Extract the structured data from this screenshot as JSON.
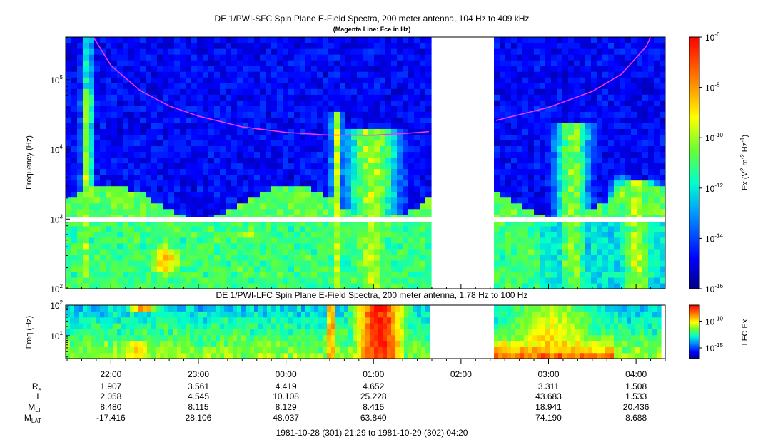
{
  "chart_data": [
    {
      "type": "heatmap",
      "title": "DE 1/PWI-SFC  Spin Plane E-Field Spectra, 200 meter antenna, 104 Hz to 409 kHz",
      "subtitle": "(Magenta Line: Fce in Hz)",
      "ylabel": "Frequency (Hz)",
      "yscale": "log",
      "ylim": [
        100,
        409000
      ],
      "y_ticks": [
        {
          "value": 100,
          "base": "10",
          "exp": "2"
        },
        {
          "value": 1000,
          "base": "10",
          "exp": "3"
        },
        {
          "value": 10000,
          "base": "10",
          "exp": "4"
        },
        {
          "value": 100000,
          "base": "10",
          "exp": "5"
        }
      ],
      "colorbar": {
        "label_pre": "Ex (V",
        "label_mid": " m",
        "label_mid2": " Hz",
        "label_post": ")",
        "label_sup1": "2",
        "label_sup2": "-2",
        "label_sup3": "-1",
        "scale": "log",
        "range": [
          1e-16,
          1e-06
        ],
        "ticks": [
          {
            "value": 1e-06,
            "base": "10",
            "exp": "-6"
          },
          {
            "value": 1e-08,
            "base": "10",
            "exp": "-8"
          },
          {
            "value": 1e-10,
            "base": "10",
            "exp": "-10"
          },
          {
            "value": 1e-12,
            "base": "10",
            "exp": "-12"
          },
          {
            "value": 1e-14,
            "base": "10",
            "exp": "-14"
          },
          {
            "value": 1e-16,
            "base": "10",
            "exp": "-16"
          }
        ]
      },
      "data_gap": [
        "01:40",
        "02:24"
      ],
      "fce_line": {
        "color": "#ff33ff",
        "points": [
          {
            "time": "21:48",
            "freq": 409000
          },
          {
            "time": "22:00",
            "freq": 160000
          },
          {
            "time": "22:20",
            "freq": 70000
          },
          {
            "time": "22:40",
            "freq": 42000
          },
          {
            "time": "23:00",
            "freq": 30000
          },
          {
            "time": "23:30",
            "freq": 21000
          },
          {
            "time": "00:00",
            "freq": 17500
          },
          {
            "time": "00:30",
            "freq": 16000
          },
          {
            "time": "01:00",
            "freq": 16000
          },
          {
            "time": "01:20",
            "freq": 16800
          },
          {
            "time": "01:38",
            "freq": 18000
          },
          {
            "time": "02:24",
            "freq": 26000
          },
          {
            "time": "03:00",
            "freq": 40000
          },
          {
            "time": "03:30",
            "freq": 68000
          },
          {
            "time": "03:50",
            "freq": 120000
          },
          {
            "time": "04:07",
            "freq": 300000
          },
          {
            "time": "04:10",
            "freq": 409000
          }
        ]
      }
    },
    {
      "type": "heatmap",
      "title": "DE 1/PWI-LFC  Spin Plane E-Field Spectra, 200 meter antenna, 1.78 Hz to 100 Hz",
      "ylabel": "Freq (Hz)",
      "yscale": "log",
      "ylim": [
        1.78,
        100
      ],
      "y_ticks": [
        {
          "value": 10,
          "base": "10",
          "exp": "1"
        },
        {
          "value": 100,
          "base": "10",
          "exp": "2"
        }
      ],
      "colorbar": {
        "label": "LFC Ex",
        "scale": "log",
        "range": [
          1e-17,
          1e-07
        ],
        "ticks": [
          {
            "value": 1e-10,
            "base": "10",
            "exp": "-10"
          },
          {
            "value": 1e-15,
            "base": "10",
            "exp": "-15"
          }
        ]
      },
      "data_gap": [
        "01:40",
        "02:24"
      ]
    }
  ],
  "x_axis": {
    "start": "21:29",
    "end": "04:20",
    "ticks": [
      "22:00",
      "23:00",
      "00:00",
      "01:00",
      "02:00",
      "03:00",
      "04:00"
    ]
  },
  "ephemeris": {
    "labels": [
      {
        "main": "R",
        "sub": "e"
      },
      {
        "main": "L",
        "sub": ""
      },
      {
        "main": "M",
        "sub": "LT"
      },
      {
        "main": "M",
        "sub": "LAT"
      }
    ],
    "columns": [
      {
        "time": "22:00",
        "values": [
          "1.907",
          "2.058",
          "8.480",
          "-17.416"
        ]
      },
      {
        "time": "23:00",
        "values": [
          "3.561",
          "4.545",
          "8.115",
          "28.106"
        ]
      },
      {
        "time": "00:00",
        "values": [
          "4.419",
          "10.108",
          "8.129",
          "48.037"
        ]
      },
      {
        "time": "01:00",
        "values": [
          "4.652",
          "25.228",
          "8.415",
          "63.840"
        ]
      },
      {
        "time": "03:00",
        "values": [
          "3.311",
          "43.683",
          "18.941",
          "74.190"
        ]
      },
      {
        "time": "04:00",
        "values": [
          "1.508",
          "1.533",
          "20.436",
          "8.688"
        ]
      }
    ]
  },
  "time_range_label": "1981-10-28 (301) 21:29 to 1981-10-29 (302) 04:20"
}
